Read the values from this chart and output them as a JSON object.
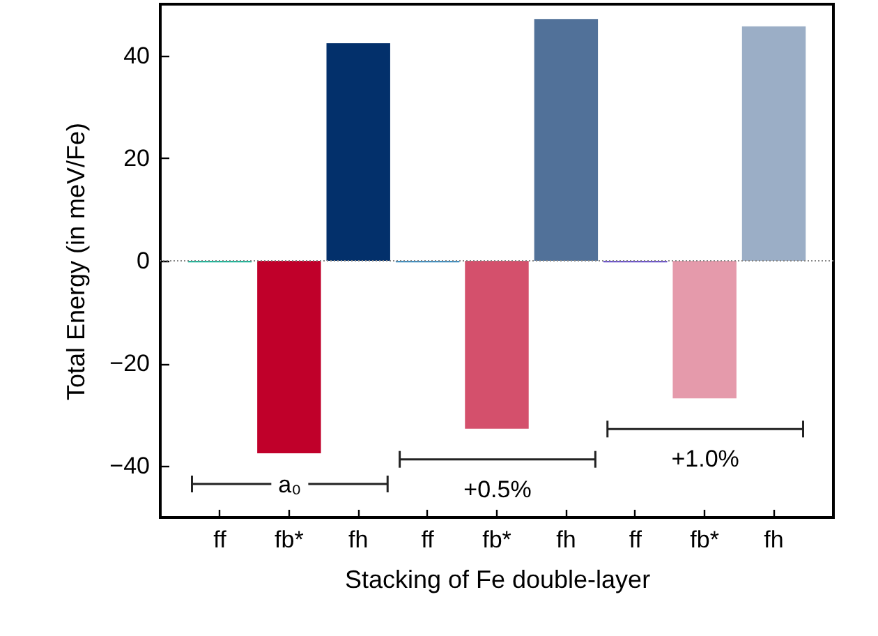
{
  "chart_data": {
    "type": "bar",
    "xlabel": "Stacking of Fe double-layer",
    "ylabel": "Total Energy (in meV/Fe)",
    "categories": [
      "ff",
      "fb*",
      "fh",
      "ff",
      "fb*",
      "fh",
      "ff",
      "fb*",
      "fh"
    ],
    "values": [
      -0.3,
      -37.5,
      42.4,
      -0.3,
      -32.7,
      47.1,
      -0.3,
      -26.8,
      45.7
    ],
    "colors": [
      "#17b99a",
      "#c0002a",
      "#03306b",
      "#3a8fc4",
      "#d4506c",
      "#517199",
      "#6a4fd0",
      "#e59aab",
      "#9baec6"
    ],
    "ylim": [
      -50,
      50
    ],
    "yticks": [
      -40,
      -20,
      0,
      20,
      40
    ],
    "grid": false,
    "ref_lines": [
      {
        "axis": "y",
        "value": 0,
        "color": "#888888",
        "line_style": "dotted"
      }
    ],
    "annotations": [
      "a₀",
      "+0.5%",
      "+1.0%"
    ]
  }
}
